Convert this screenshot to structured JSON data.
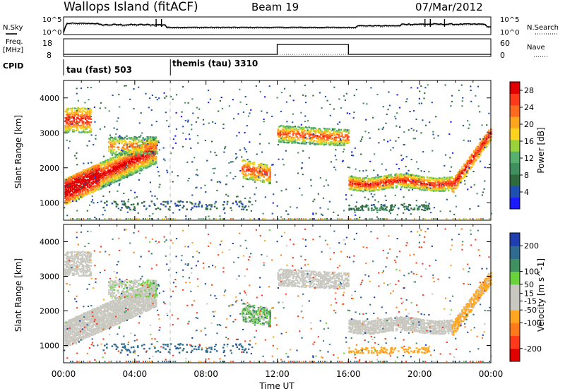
{
  "header": {
    "site": "Wallops Island (fitACF)",
    "beam": "Beam 19",
    "date": "07/Mar/2012"
  },
  "top_panels": {
    "nsky_label": "N.Sky",
    "nsearch_label": "N.Search",
    "freq_label_1": "Freq.",
    "freq_label_2": "[MHz]",
    "nave_label": "Nave",
    "cpid_label": "CPID",
    "noise_ticks": [
      "10^5",
      "10^0"
    ],
    "freq_ticks": [
      "18",
      "8"
    ],
    "nave_ticks": [
      "60",
      "0"
    ],
    "cpid_segments": [
      {
        "label": "tau (fast) 503",
        "start_hour": 0,
        "end_hour": 6
      },
      {
        "label": "themis (tau) 3310",
        "start_hour": 6,
        "end_hour": 24
      }
    ],
    "freq_step": {
      "low_mhz": 8,
      "high_mhz": 18,
      "high_start_hour": 12,
      "high_end_hour": 16
    }
  },
  "chart_data": [
    {
      "type": "heatmap",
      "name": "power",
      "xlabel": "",
      "ylabel": "Slant Range [km]",
      "xlim": [
        0,
        24
      ],
      "ylim": [
        500,
        4500
      ],
      "x_ticks": [
        "00:00",
        "04:00",
        "08:00",
        "12:00",
        "16:00",
        "20:00",
        "00:00"
      ],
      "y_ticks": [
        1000,
        2000,
        3000,
        4000
      ],
      "colorbar": {
        "label": "Power [dB]",
        "ticks": [
          4,
          8,
          12,
          16,
          20,
          24,
          28
        ],
        "range": [
          0,
          30
        ],
        "colors": [
          "#1a1aff",
          "#1f4fb0",
          "#2f6b3f",
          "#3f8f5f",
          "#57b06e",
          "#9ad23c",
          "#ffd21f",
          "#ffa51f",
          "#ff6a1f",
          "#ff3a1a",
          "#e00000"
        ]
      }
    },
    {
      "type": "heatmap",
      "name": "velocity",
      "xlabel": "Time UT",
      "ylabel": "Slant Range [km]",
      "xlim": [
        0,
        24
      ],
      "ylim": [
        500,
        4500
      ],
      "x_ticks": [
        "00:00",
        "04:00",
        "08:00",
        "12:00",
        "16:00",
        "20:00",
        "00:00"
      ],
      "y_ticks": [
        1000,
        2000,
        3000,
        4000
      ],
      "colorbar": {
        "label": "Velocity [m s^-1]",
        "ticks": [
          200,
          100,
          50,
          15,
          -15,
          -50,
          -100,
          -200
        ],
        "range": [
          -250,
          250
        ],
        "colors": [
          "#e00000",
          "#ff3a1a",
          "#ff7a1a",
          "#ffa51f",
          "#c8c8c0",
          "#c8c8c0",
          "#6ad23c",
          "#3f8f5f",
          "#2f6b8f",
          "#1f3fb0"
        ]
      }
    }
  ]
}
